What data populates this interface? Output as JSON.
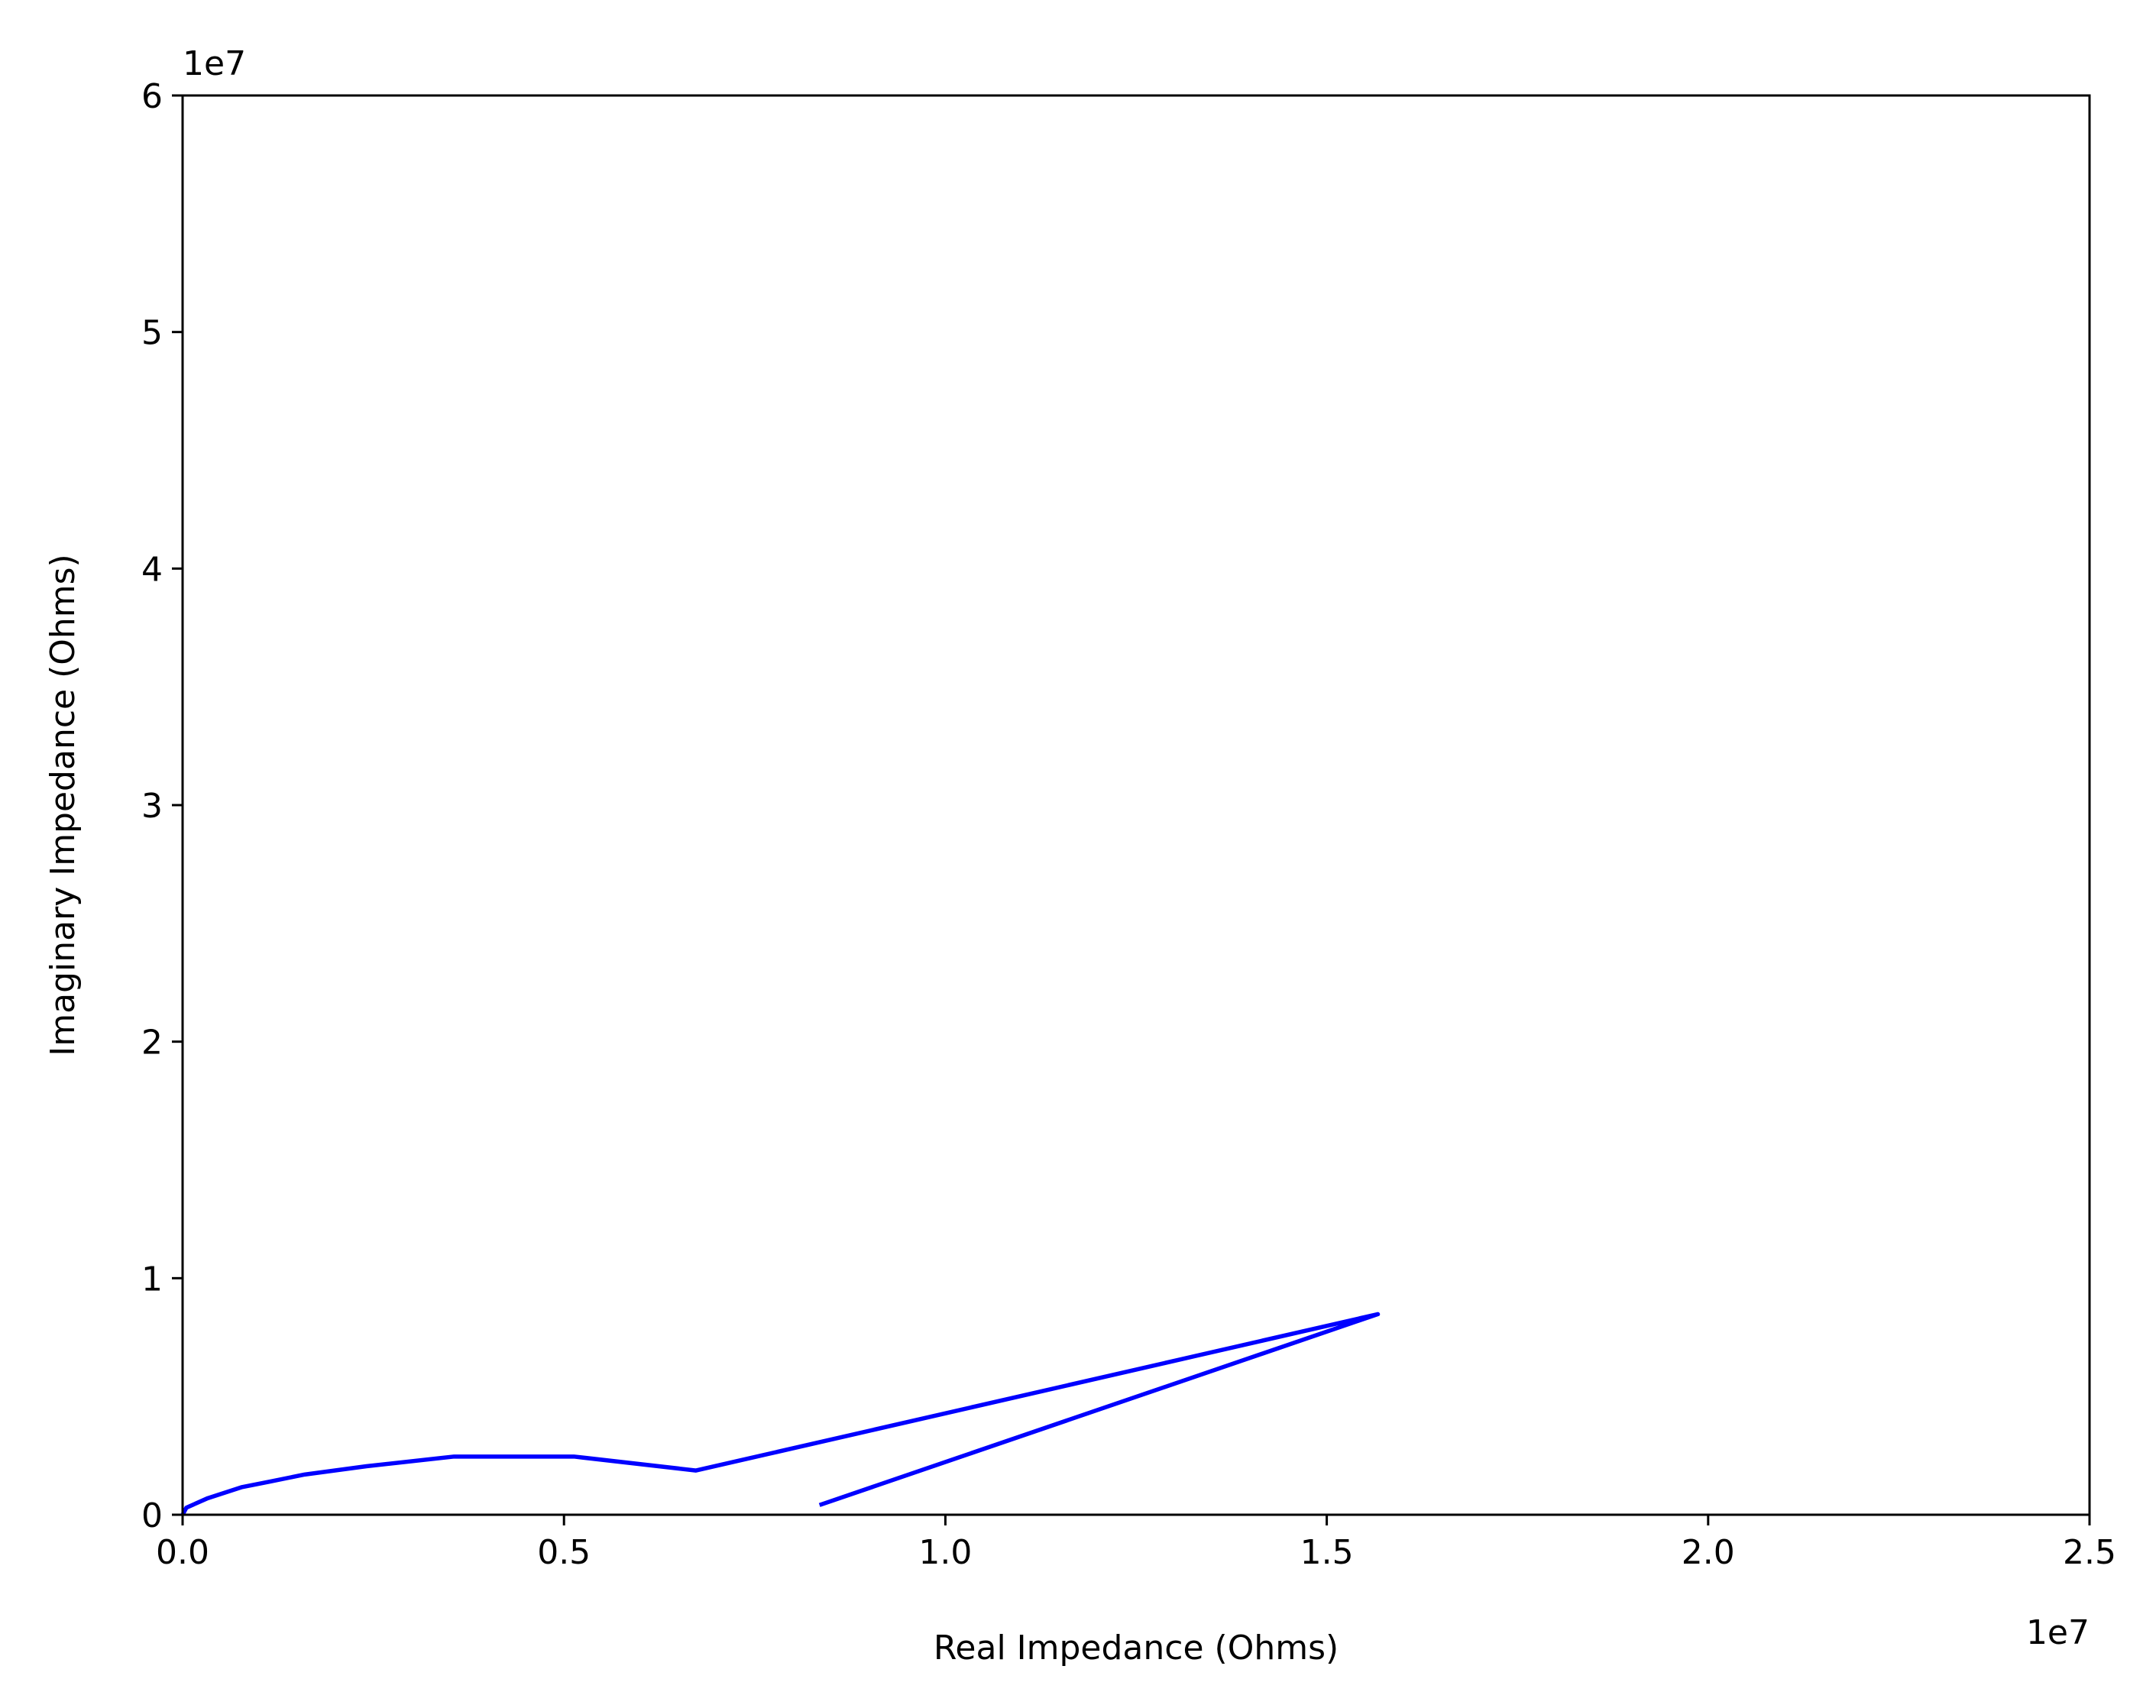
{
  "chart_data": {
    "type": "line",
    "xlabel": "Real Impedance (Ohms)",
    "ylabel": "Imaginary Impedance (Ohms)",
    "x_offset_text": "1e7",
    "y_offset_text": "1e7",
    "series": [
      {
        "color": "#0000ff",
        "x": [
          0,
          0.005,
          0.033,
          0.078,
          0.114,
          0.16,
          0.241,
          0.356,
          0.513,
          0.673,
          1.567,
          0.835
        ],
        "values": [
          0,
          0.03,
          0.07,
          0.117,
          0.14,
          0.17,
          0.205,
          0.246,
          0.246,
          0.187,
          0.848,
          0.041
        ]
      }
    ],
    "xlim": [
      0,
      2.5
    ],
    "xticks": [
      {
        "value": 0,
        "label": "0.0"
      },
      0.5,
      {
        "value": 1,
        "label": "1.0"
      },
      1.5,
      {
        "value": 2,
        "label": "2.0"
      },
      2.5
    ],
    "ylim": [
      0,
      6
    ],
    "yticks": [
      0,
      1,
      2,
      3,
      4,
      5,
      6
    ],
    "grid": false
  }
}
